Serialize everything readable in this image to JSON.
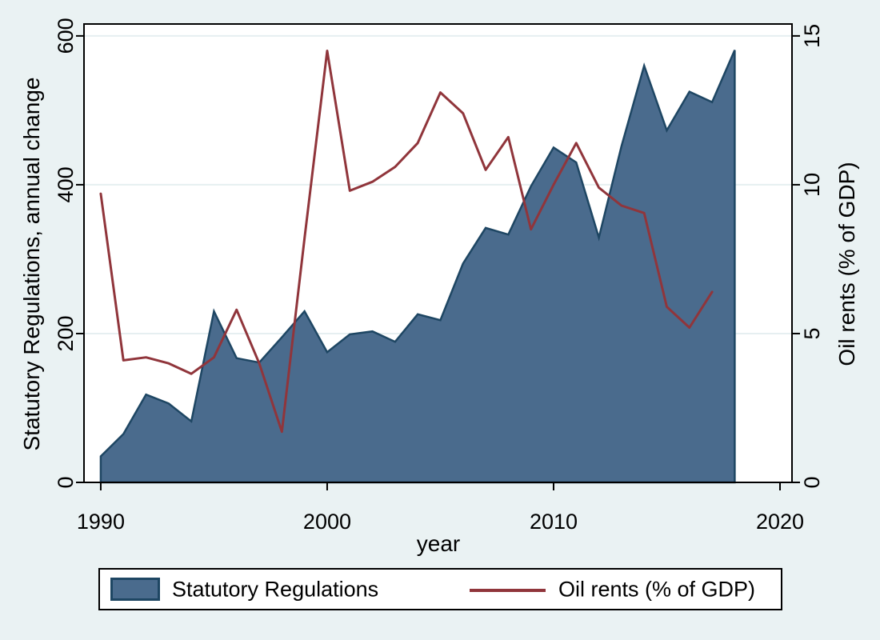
{
  "chart_data": {
    "type": "area+line-dual-axis",
    "title": "",
    "xlabel": "year",
    "x_ticks": [
      1990,
      2000,
      2010,
      2020
    ],
    "xlim": [
      1989.26,
      2020.53
    ],
    "grid": "horizontal",
    "background_color": "#eaf2f3",
    "plot_background_color": "#ffffff",
    "gridline_color": "#e6eff1",
    "left_axis": {
      "label": "Statutory Regulations, annual change",
      "ticks": [
        0,
        200,
        400,
        600
      ],
      "range": [
        0,
        616
      ]
    },
    "right_axis": {
      "label": "Oil rents (% of GDP)",
      "ticks": [
        0,
        5,
        10,
        15
      ],
      "range": [
        0,
        15.4
      ]
    },
    "series": [
      {
        "name": "Statutory Regulations",
        "type": "area",
        "axis": "left",
        "fill_color": "#4a6b8d",
        "stroke_color": "#1e4663",
        "x": [
          1990,
          1991,
          1992,
          1993,
          1994,
          1995,
          1996,
          1997,
          1998,
          1999,
          2000,
          2001,
          2002,
          2003,
          2004,
          2005,
          2006,
          2007,
          2008,
          2009,
          2010,
          2011,
          2012,
          2013,
          2014,
          2015,
          2016,
          2017,
          2018
        ],
        "values": [
          35,
          65,
          118,
          106,
          82,
          230,
          167,
          161,
          195,
          230,
          175,
          199,
          203,
          189,
          226,
          218,
          294,
          342,
          333,
          398,
          450,
          430,
          329,
          452,
          560,
          473,
          525,
          511,
          581
        ]
      },
      {
        "name": "Oil rents (% of GDP)",
        "type": "line",
        "axis": "right",
        "stroke_color": "#90353b",
        "x": [
          1990,
          1991,
          1992,
          1993,
          1994,
          1995,
          1996,
          1997,
          1998,
          1999,
          2000,
          2001,
          2002,
          2003,
          2004,
          2005,
          2006,
          2007,
          2008,
          2009,
          2010,
          2011,
          2012,
          2013,
          2014,
          2015,
          2016,
          2017
        ],
        "values": [
          9.7,
          4.1,
          4.2,
          4.0,
          3.65,
          4.2,
          5.8,
          4.0,
          1.7,
          8.2,
          14.5,
          9.8,
          10.1,
          10.6,
          11.4,
          13.1,
          12.4,
          10.5,
          11.6,
          8.5,
          10.0,
          11.4,
          9.9,
          9.3,
          9.05,
          5.9,
          5.2,
          6.4
        ]
      }
    ],
    "legend": {
      "position": "bottom",
      "items": [
        "Statutory Regulations",
        "Oil rents (% of GDP)"
      ]
    }
  }
}
